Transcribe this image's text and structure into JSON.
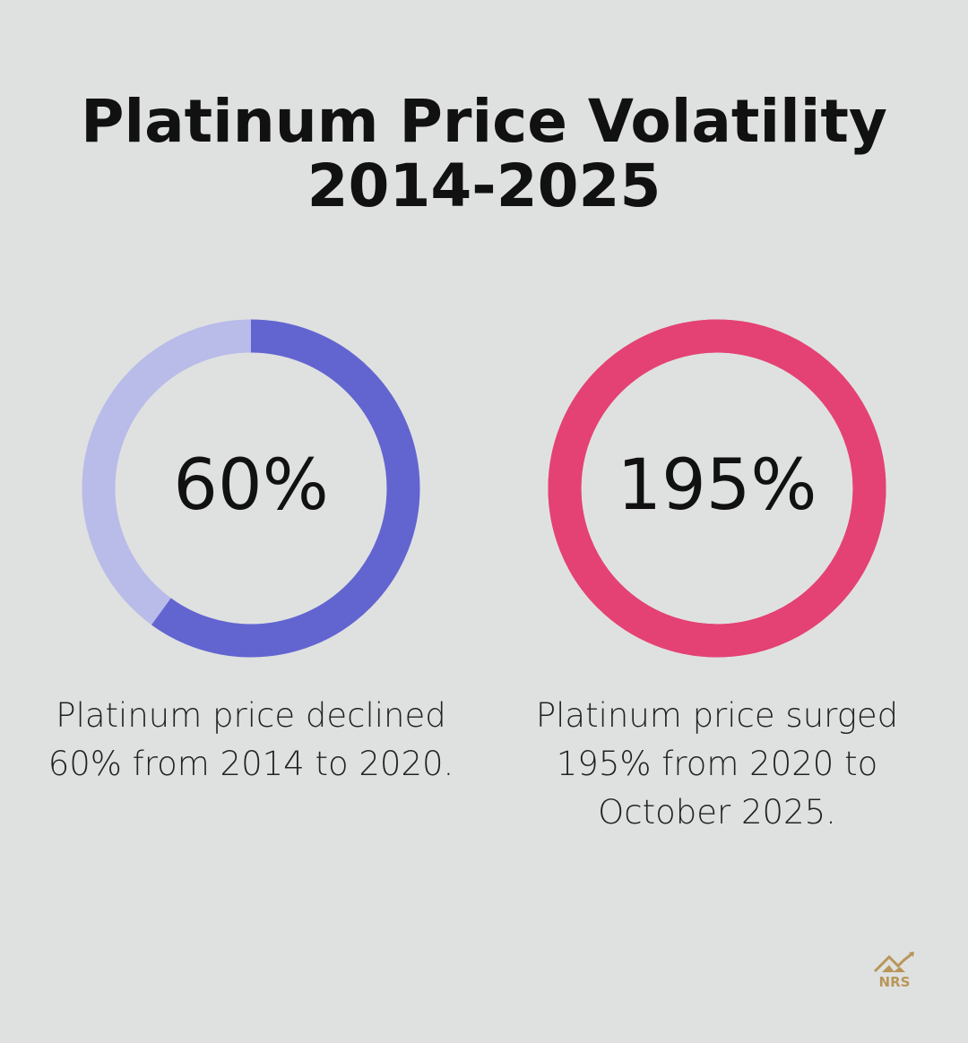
{
  "title_line1": "Platinum Price Volatility",
  "title_line2": "2014-2025",
  "chart_data": [
    {
      "type": "pie",
      "variant": "donut",
      "percent": 60,
      "value_label": "60%",
      "caption": "Platinum price declined 60% from 2014 to 2020.",
      "colors": {
        "fill": "#6265cf",
        "track": "#b9bbe9"
      }
    },
    {
      "type": "pie",
      "variant": "donut",
      "percent": 100,
      "value_label": "195%",
      "caption": "Platinum price surged 195% from 2020 to October 2025.",
      "colors": {
        "fill": "#e44274",
        "track": "#e44274"
      }
    }
  ],
  "logo": {
    "text": "NRS",
    "color": "#b8965a"
  }
}
